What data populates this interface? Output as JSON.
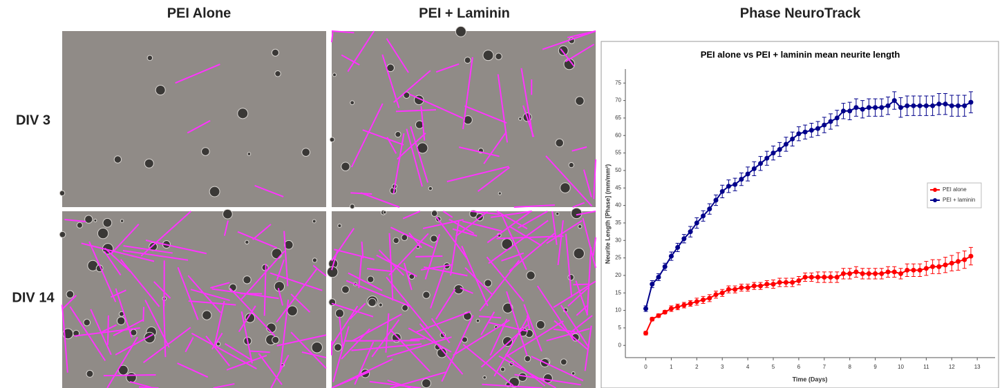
{
  "headers": {
    "columns": [
      "PEI Alone",
      "PEI + Laminin",
      "Phase NeuroTrack"
    ],
    "rows": [
      "DIV 3",
      "DIV 14"
    ]
  },
  "chart_data": {
    "type": "line",
    "title": "PEI alone vs PEI + laminin mean neurite length",
    "x_label": "Time (Days)",
    "y_label": "Neurite Length [Phase] (mm/mm²)",
    "x": [
      0,
      0.25,
      0.5,
      0.75,
      1,
      1.25,
      1.5,
      1.75,
      2,
      2.25,
      2.5,
      2.75,
      3,
      3.25,
      3.5,
      3.75,
      4,
      4.25,
      4.5,
      4.75,
      5,
      5.25,
      5.5,
      5.75,
      6,
      6.25,
      6.5,
      6.75,
      7,
      7.25,
      7.5,
      7.75,
      8,
      8.25,
      8.5,
      8.75,
      9,
      9.25,
      9.5,
      9.75,
      10,
      10.25,
      10.5,
      10.75,
      11,
      11.25,
      11.5,
      11.75,
      12,
      12.25,
      12.5,
      12.75
    ],
    "series": [
      {
        "name": "PEI alone",
        "color": "#ff0000",
        "values": [
          3.5,
          7.5,
          8.5,
          9.5,
          10.5,
          11,
          11.5,
          12,
          12.5,
          13,
          13.5,
          14.5,
          15,
          16,
          16,
          16.5,
          16.5,
          17,
          17,
          17.5,
          17.5,
          18,
          18,
          18,
          18.5,
          19.5,
          19.5,
          19.5,
          19.5,
          19.5,
          19.5,
          20.5,
          20.5,
          21,
          20.5,
          20.5,
          20.5,
          20.5,
          21,
          21,
          20.5,
          21.5,
          21.5,
          21.5,
          22,
          22.5,
          22.5,
          23,
          23.5,
          24,
          24.5,
          25.5
        ],
        "errors": [
          0.5,
          0.5,
          0.5,
          0.5,
          0.8,
          0.8,
          0.8,
          0.8,
          1,
          1,
          1,
          1,
          1,
          1,
          1,
          1,
          1,
          1,
          1,
          1,
          1.2,
          1.2,
          1.2,
          1.2,
          1.2,
          1.2,
          1.2,
          1.5,
          1.5,
          1.5,
          1.5,
          1.5,
          1.5,
          1.5,
          1.5,
          1.5,
          1.5,
          1.5,
          1.5,
          1.5,
          1.5,
          1.8,
          1.8,
          1.8,
          2,
          2,
          2,
          2.2,
          2.2,
          2.5,
          2.5,
          2.5
        ]
      },
      {
        "name": "PEI + laminin",
        "color": "#00008b",
        "values": [
          10.5,
          17.5,
          19.5,
          22.5,
          25.5,
          28,
          30.5,
          32.5,
          35,
          37,
          39,
          41.5,
          44,
          45.5,
          46,
          47.5,
          49,
          50.5,
          52,
          53.5,
          55,
          56,
          57.5,
          59,
          60.5,
          61,
          61.5,
          62,
          63,
          64,
          65,
          67,
          67,
          68,
          67.5,
          68,
          68,
          68,
          68.5,
          70,
          68,
          68.5,
          68.5,
          68.5,
          68.5,
          68.5,
          69,
          69,
          68.5,
          68.5,
          68.5,
          69.5
        ],
        "errors": [
          0.8,
          1,
          1,
          1,
          1.2,
          1.2,
          1.2,
          1.5,
          1.5,
          1.5,
          1.5,
          1.5,
          1.8,
          1.8,
          1.8,
          1.8,
          2,
          2,
          2,
          2,
          2,
          2,
          2,
          2,
          2,
          2,
          2,
          2,
          2.2,
          2.2,
          2.2,
          2.2,
          2.5,
          2.5,
          2.5,
          2.5,
          2.5,
          2.5,
          2.5,
          2.5,
          2.8,
          2.8,
          2.8,
          2.8,
          2.8,
          2.8,
          3,
          3,
          3,
          3,
          3,
          3
        ]
      }
    ],
    "xlim": [
      -0.8,
      13.7
    ],
    "ylim": [
      -3.5,
      79
    ],
    "xticks": [
      0,
      1,
      2,
      3,
      4,
      5,
      6,
      7,
      8,
      9,
      10,
      11,
      12,
      13
    ],
    "yticks": [
      0,
      5,
      10,
      15,
      20,
      25,
      30,
      35,
      40,
      45,
      50,
      55,
      60,
      65,
      70,
      75
    ],
    "legend": "right",
    "grid": false
  }
}
